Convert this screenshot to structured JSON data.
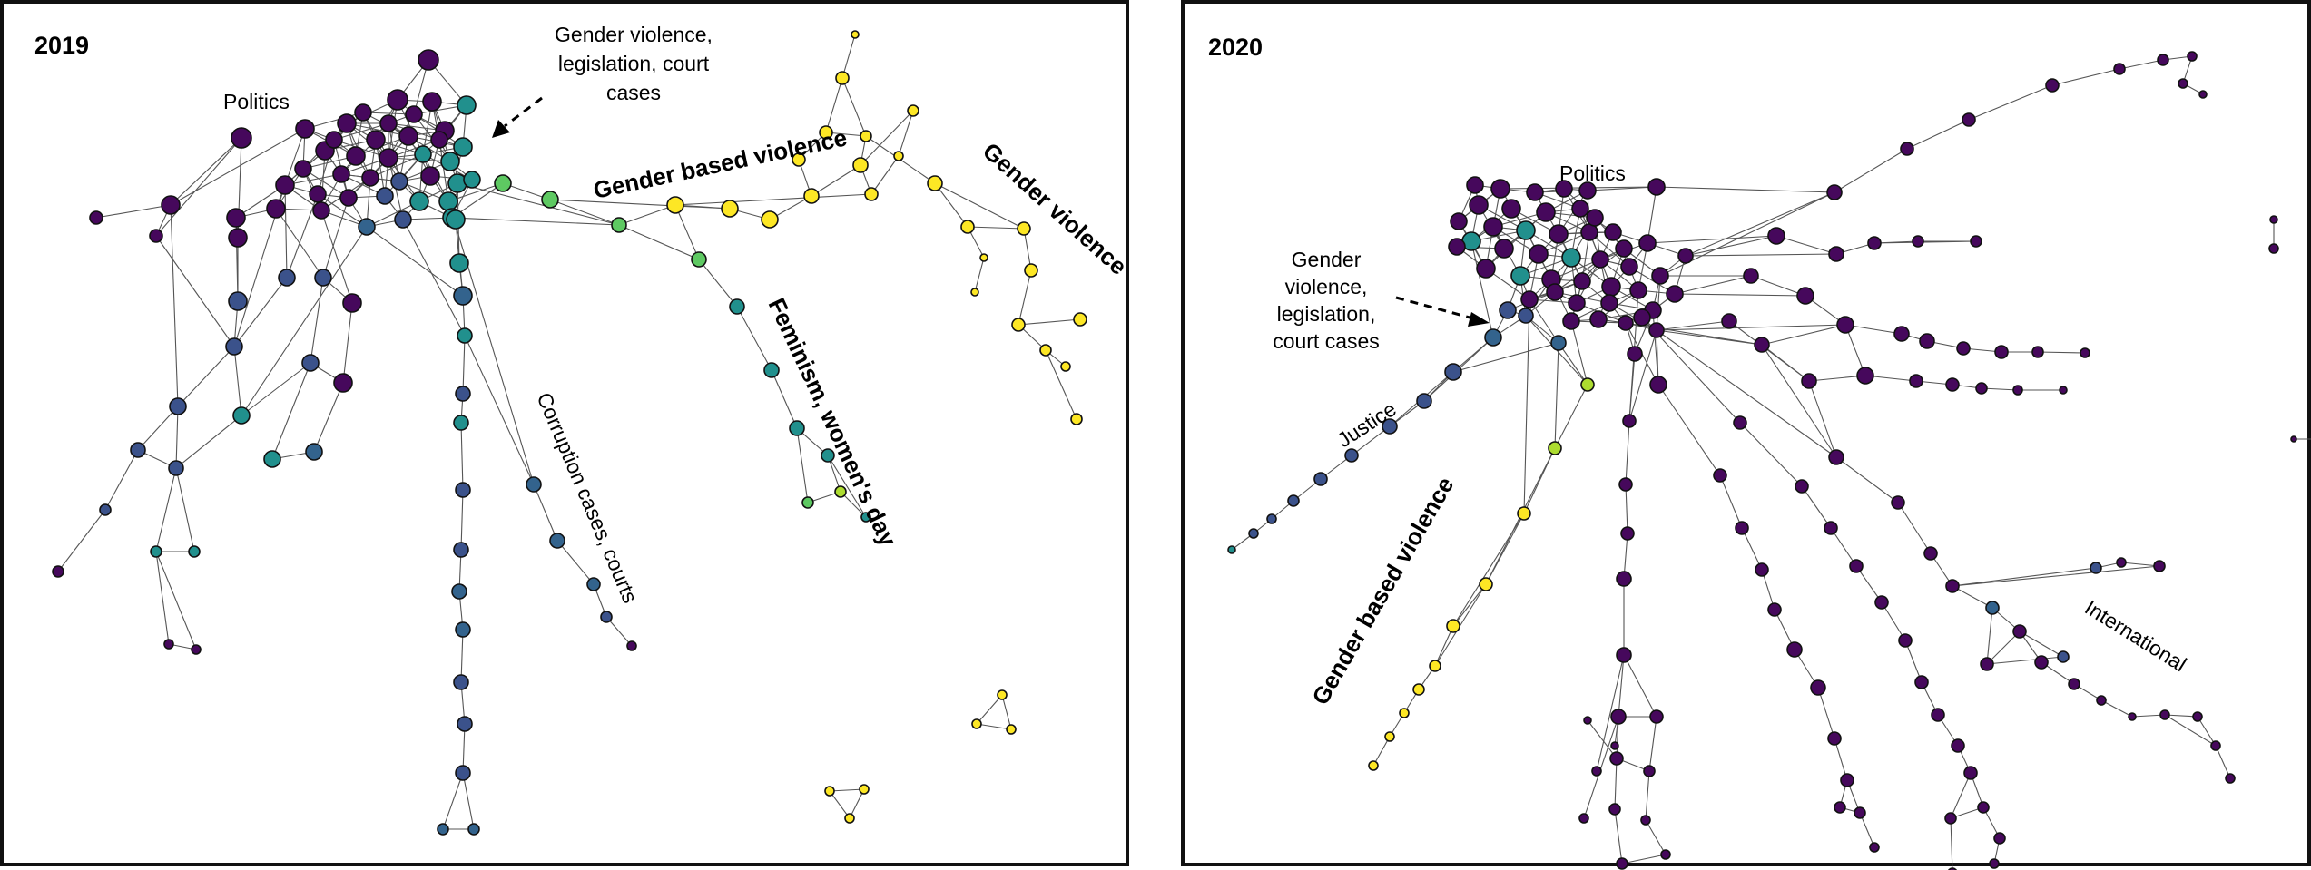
{
  "panels": [
    {
      "year": "2019",
      "labels": {
        "politics": "Politics",
        "gv_line1": "Gender violence,",
        "gv_line2": "legislation, court",
        "gv_line3": "cases",
        "gbv": "Gender based violence",
        "gender_violence": "Gender violence",
        "feminism": "Feminism, women's day",
        "corruption": "Corruption cases, courts"
      }
    },
    {
      "year": "2020",
      "labels": {
        "politics": "Politics",
        "gv_line1": "Gender",
        "gv_line2": "violence,",
        "gv_line3": "legislation,",
        "gv_line4": "court cases",
        "justice": "Justice",
        "gbv": "Gender based violence",
        "international": "International"
      }
    }
  ],
  "colors": {
    "purple": "#46085c",
    "indigo": "#3b528b",
    "blue": "#33638d",
    "teal": "#21908d",
    "green": "#5ec962",
    "lime": "#addc30",
    "yellow": "#fde725",
    "border": "#111111",
    "edge": "#555555"
  }
}
